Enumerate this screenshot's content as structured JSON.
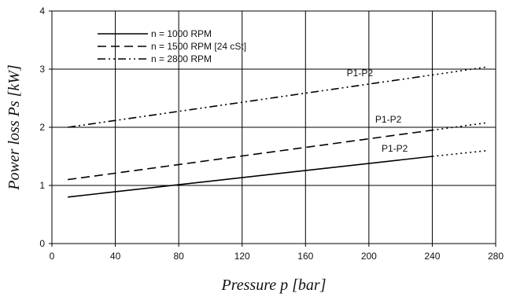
{
  "chart_data": {
    "type": "line",
    "xlabel": "Pressure p [bar]",
    "ylabel": "Power loss Ps [kW]",
    "xlim": [
      0,
      280
    ],
    "ylim": [
      0,
      4
    ],
    "x_ticks": [
      "0",
      "40",
      "80",
      "120",
      "160",
      "200",
      "240",
      "280"
    ],
    "y_ticks": [
      "0",
      "1",
      "2",
      "3",
      "4"
    ],
    "grid": true,
    "legend_position": "top-left",
    "series": [
      {
        "name": "n = 1000 RPM",
        "style": "solid",
        "x": [
          10,
          240
        ],
        "y": [
          0.8,
          1.5
        ],
        "extrapolated": {
          "x": [
            240,
            275
          ],
          "y": [
            1.5,
            1.6
          ]
        }
      },
      {
        "name": "n = 1500 RPM [24 cSt]",
        "style": "dashed",
        "x": [
          10,
          240
        ],
        "y": [
          1.1,
          1.95
        ],
        "extrapolated": {
          "x": [
            240,
            275
          ],
          "y": [
            1.95,
            2.08
          ]
        }
      },
      {
        "name": "n = 2800 RPM",
        "style": "dash-dot-dot",
        "x": [
          10,
          240
        ],
        "y": [
          2.0,
          2.9
        ],
        "extrapolated": {
          "x": [
            240,
            275
          ],
          "y": [
            2.9,
            3.04
          ]
        }
      }
    ],
    "annotations": [
      {
        "text": "P1-P2",
        "x": 208,
        "y": 1.58
      },
      {
        "text": "P1-P2",
        "x": 204,
        "y": 2.08
      },
      {
        "text": "P1-P2",
        "x": 186,
        "y": 2.88
      }
    ]
  }
}
